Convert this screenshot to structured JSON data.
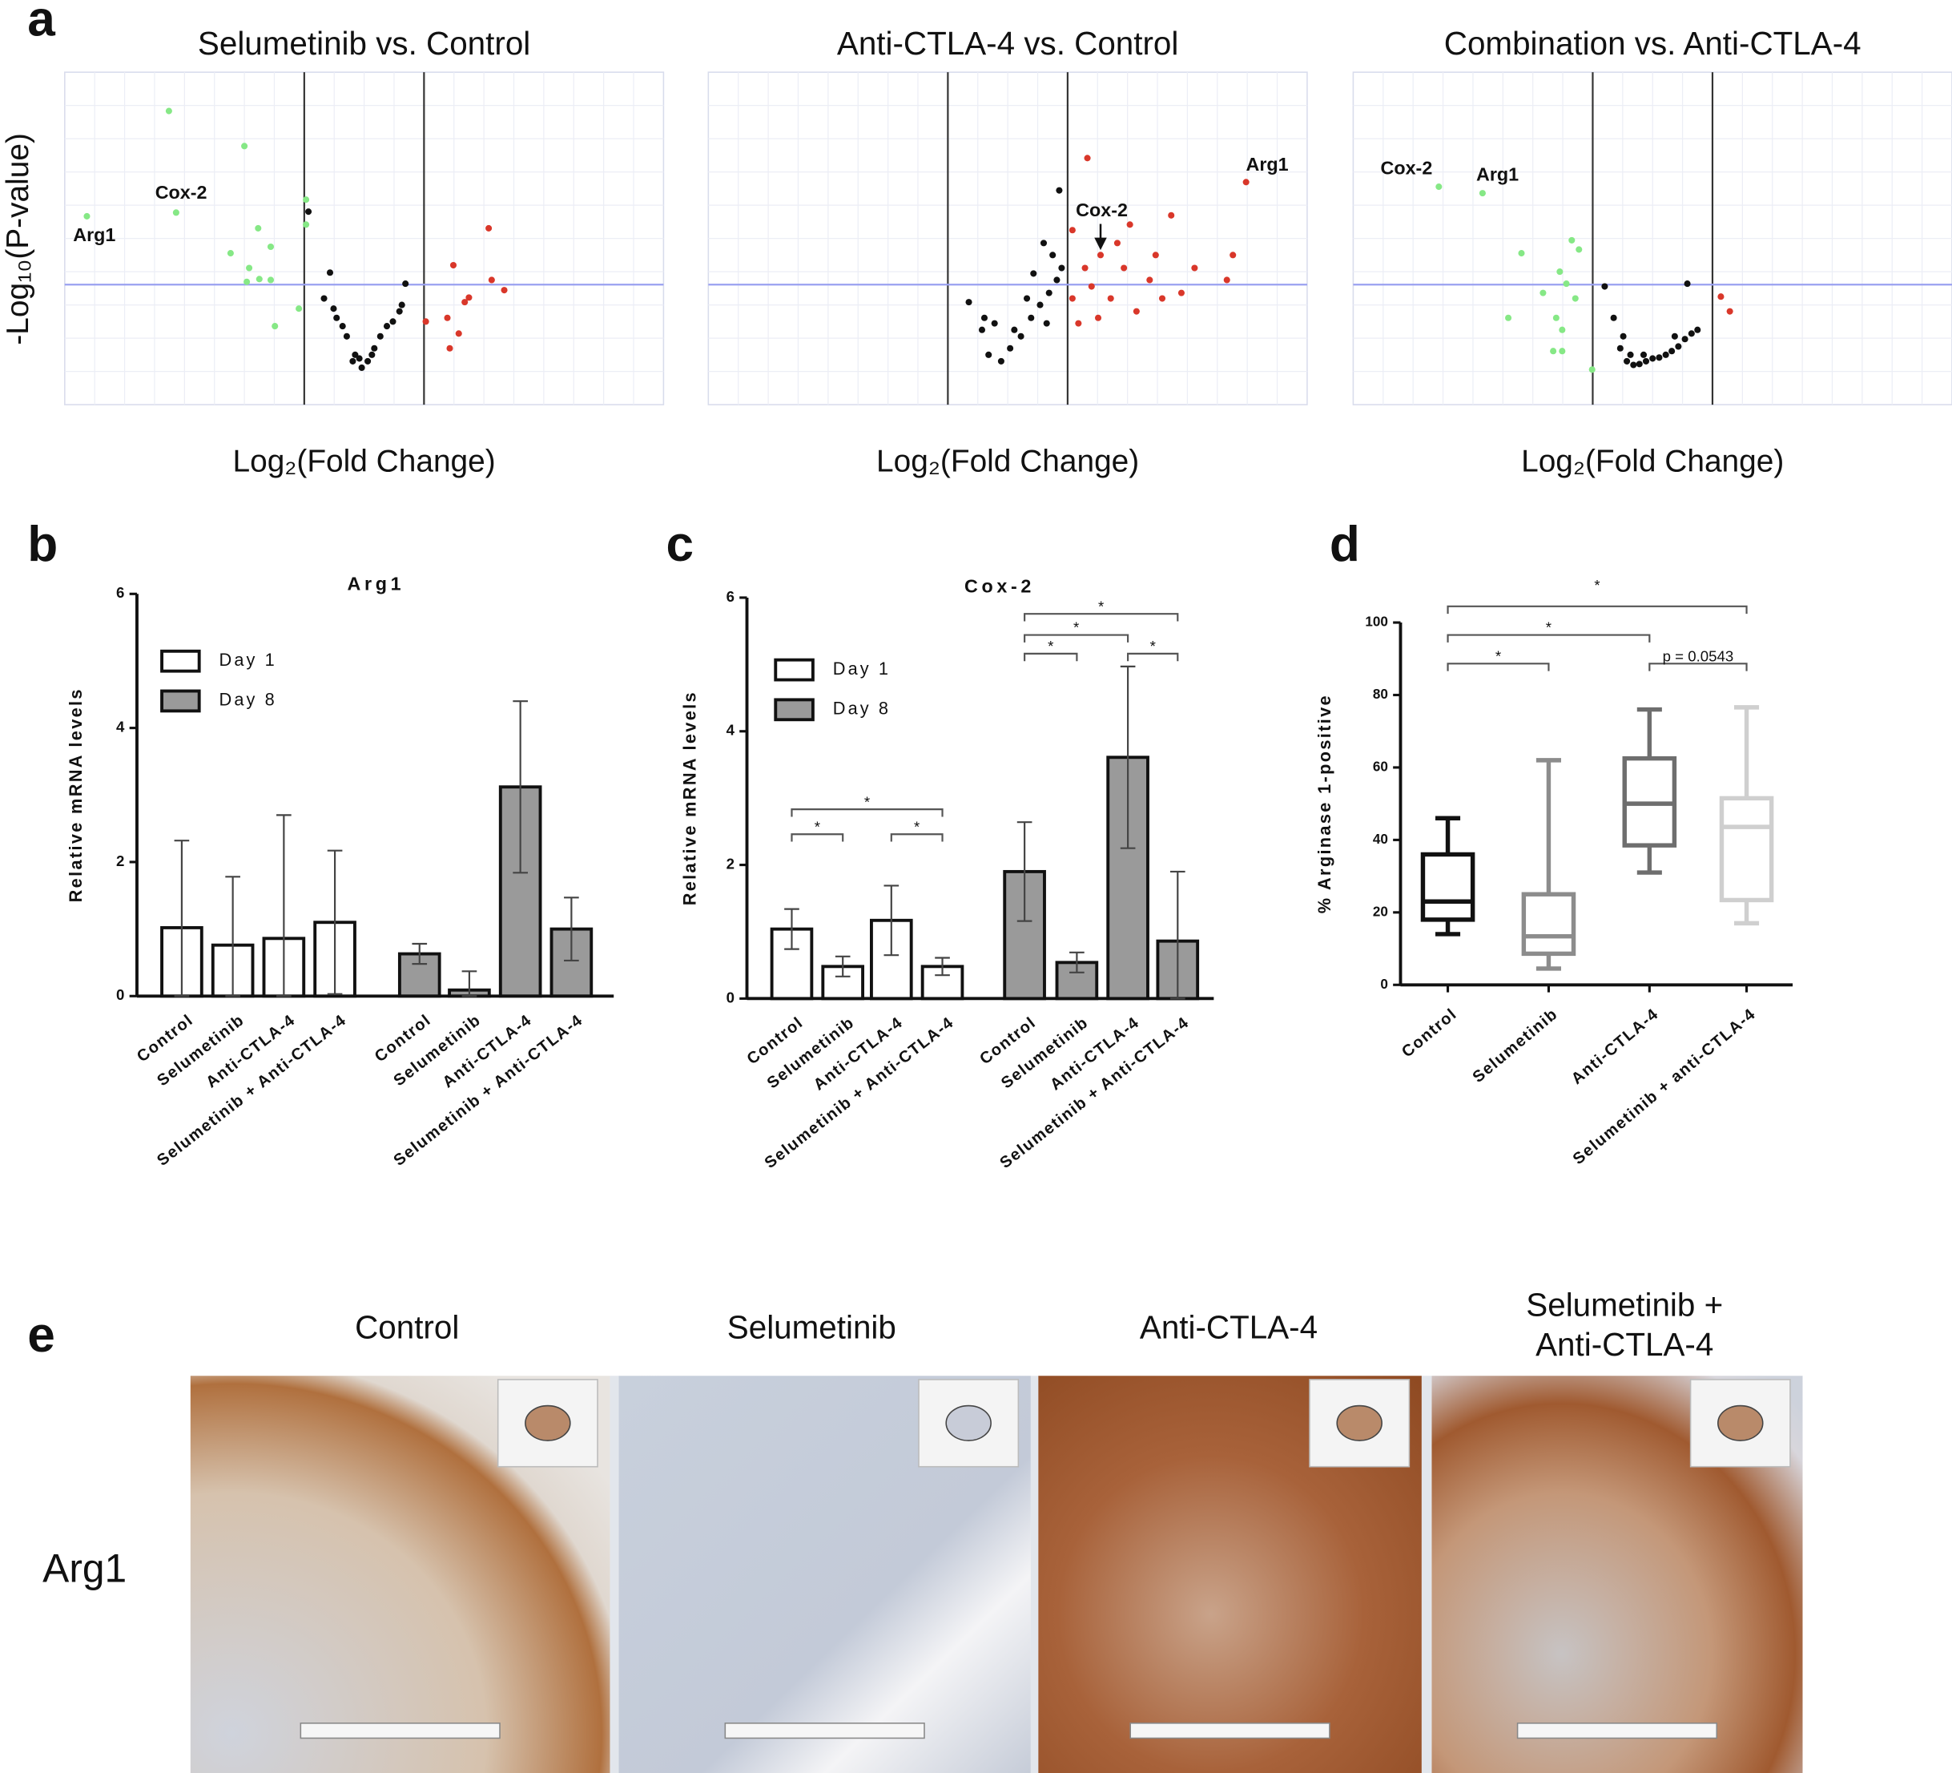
{
  "panels": [
    "a",
    "b",
    "c",
    "d",
    "e"
  ],
  "images": {
    "titles": [
      "Control",
      "Selumetinib",
      "Anti-CTLA-4",
      [
        "Selumetinib +",
        "Anti-CTLA-4"
      ]
    ],
    "row_label": "Arg1"
  },
  "chart_data": [
    {
      "type": "scatter",
      "title": "Selumetinib vs. Control",
      "xlabel": "Log₂(Fold Change)",
      "ylabel": "-Log₁₀(P-value)",
      "xlim": [
        -5,
        5
      ],
      "ylim": [
        0,
        3.6
      ],
      "grid": true,
      "vlines": [
        -1,
        1
      ],
      "hline": 1.3,
      "series": [
        {
          "color": "#86e886",
          "x": [
            -3.26,
            -2.0,
            -4.63,
            -3.14,
            -1.77,
            -1.56,
            -2.23,
            -1.92,
            -1.75,
            -1.96,
            -1.56,
            -0.97,
            -1.09,
            -1.49,
            -0.97
          ],
          "values": [
            3.18,
            2.8,
            2.04,
            2.08,
            1.91,
            1.71,
            1.64,
            1.48,
            1.36,
            1.33,
            1.35,
            2.22,
            1.04,
            0.85,
            1.95
          ]
        },
        {
          "color": "#111111",
          "x": [
            -0.93,
            -0.57,
            -0.67,
            -0.46,
            -0.29,
            -0.15,
            -0.04,
            0.06,
            0.17,
            0.27,
            0.38,
            0.48,
            0.59,
            0.69,
            0.63,
            -0.19,
            -0.08,
            -0.36,
            -0.51,
            0.13
          ],
          "values": [
            2.09,
            1.43,
            1.15,
            0.94,
            0.74,
            0.54,
            0.4,
            0.47,
            0.61,
            0.74,
            0.85,
            0.9,
            1.01,
            1.31,
            1.08,
            0.47,
            0.5,
            0.85,
            1.04,
            0.54
          ]
        },
        {
          "color": "#d9372a",
          "x": [
            1.49,
            2.08,
            2.13,
            2.34,
            1.68,
            1.39,
            1.58,
            1.03,
            1.75,
            1.43
          ],
          "values": [
            1.51,
            1.91,
            1.35,
            1.24,
            1.11,
            0.94,
            0.77,
            0.9,
            1.16,
            0.61
          ]
        }
      ],
      "annotations": [
        {
          "text": "Arg1",
          "series": 0,
          "index": 2
        },
        {
          "text": "Cox-2",
          "series": 0,
          "index": 3
        }
      ]
    },
    {
      "type": "scatter",
      "title": "Anti-CTLA-4 vs. Control",
      "xlabel": "Log₂(Fold Change)",
      "xlim": [
        -5,
        5
      ],
      "ylim": [
        0,
        3.6
      ],
      "grid": true,
      "vlines": [
        -1,
        1
      ],
      "hline": 1.3,
      "series": [
        {
          "color": "#111111",
          "x": [
            0.86,
            -0.65,
            -0.43,
            -0.32,
            -0.11,
            0.04,
            0.22,
            0.39,
            0.54,
            0.69,
            0.82,
            0.9,
            0.43,
            0.75,
            0.6,
            -0.22,
            0.11,
            -0.39,
            0.32,
            0.65
          ],
          "values": [
            2.32,
            1.11,
            0.81,
            0.54,
            0.47,
            0.61,
            0.74,
            0.94,
            1.08,
            1.21,
            1.35,
            1.48,
            1.42,
            1.62,
            1.75,
            0.88,
            0.81,
            0.94,
            1.15,
            0.88
          ]
        },
        {
          "color": "#d9372a",
          "x": [
            1.33,
            3.98,
            2.73,
            1.08,
            1.55,
            1.94,
            2.37,
            2.9,
            3.66,
            1.4,
            1.72,
            2.15,
            1.18,
            1.51,
            1.83,
            3.12,
            2.47,
            1.29,
            2.04,
            3.76,
            1.08,
            2.58
          ],
          "values": [
            2.67,
            2.41,
            2.05,
            1.89,
            1.62,
            1.48,
            1.35,
            1.21,
            1.35,
            1.28,
            1.15,
            1.01,
            0.88,
            0.94,
            1.75,
            1.48,
            1.62,
            1.48,
            1.95,
            1.62,
            1.15,
            1.15
          ]
        }
      ],
      "annotations": [
        {
          "text": "Arg1",
          "series": 1,
          "index": 1
        },
        {
          "text": "Cox-2",
          "series": 1,
          "index": 4
        }
      ]
    },
    {
      "type": "scatter",
      "title": "Combination vs. Anti-CTLA-4",
      "xlabel": "Log₂(Fold Change)",
      "xlim": [
        -5,
        5
      ],
      "ylim": [
        0,
        3.6
      ],
      "grid": true,
      "vlines": [
        -1,
        1
      ],
      "hline": 1.3,
      "series": [
        {
          "color": "#86e886",
          "x": [
            -3.57,
            -2.84,
            -2.19,
            -1.35,
            -1.23,
            -1.55,
            -1.44,
            -1.83,
            -2.41,
            -1.61,
            -1.51,
            -1.66,
            -1.51,
            -1.01,
            -1.29
          ],
          "values": [
            2.36,
            2.29,
            1.64,
            1.78,
            1.68,
            1.44,
            1.31,
            1.21,
            0.94,
            0.94,
            0.81,
            0.58,
            0.58,
            0.38,
            1.15
          ]
        },
        {
          "color": "#111111",
          "x": [
            -0.8,
            -0.65,
            -0.54,
            -0.43,
            -0.32,
            -0.22,
            -0.11,
            0,
            0.11,
            0.22,
            0.32,
            0.43,
            0.54,
            0.65,
            0.75,
            0.58,
            -0.15,
            -0.37,
            -0.49,
            0.37
          ],
          "values": [
            1.28,
            0.94,
            0.61,
            0.47,
            0.43,
            0.44,
            0.47,
            0.5,
            0.51,
            0.54,
            0.58,
            0.63,
            0.71,
            0.77,
            0.81,
            1.31,
            0.54,
            0.54,
            0.74,
            0.74
          ]
        },
        {
          "color": "#d9372a",
          "x": [
            1.14,
            1.29
          ],
          "values": [
            1.17,
            1.01
          ]
        }
      ],
      "annotations": [
        {
          "text": "Cox-2",
          "series": 0,
          "index": 0
        },
        {
          "text": "Arg1",
          "series": 0,
          "index": 1
        }
      ]
    },
    {
      "type": "bar",
      "title": "Arg1",
      "ylabel": "Relative mRNA levels",
      "ylim": [
        0,
        6
      ],
      "yticks": [
        0,
        2,
        4,
        6
      ],
      "legend": "upper left",
      "categories": [
        "Control",
        "Selumetinib",
        "Anti-CTLA-4",
        "Selumetinib + Anti-CTLA-4"
      ],
      "series": [
        {
          "name": "Day 1",
          "color": "#ffffff",
          "values": [
            1.02,
            0.76,
            0.86,
            1.1
          ],
          "errors": [
            1.3,
            1.02,
            1.84,
            1.07
          ]
        },
        {
          "name": "Day 8",
          "color": "#9a9a9a",
          "values": [
            0.63,
            0.09,
            3.12,
            1.0
          ],
          "errors": [
            0.15,
            0.28,
            1.28,
            0.47
          ]
        }
      ]
    },
    {
      "type": "bar",
      "title": "Cox-2",
      "ylabel": "Relative mRNA levels",
      "ylim": [
        0,
        6
      ],
      "yticks": [
        0,
        2,
        4,
        6
      ],
      "legend": "upper left",
      "categories": [
        "Control",
        "Selumetinib",
        "Anti-CTLA-4",
        "Selumetinib + Anti-CTLA-4"
      ],
      "series": [
        {
          "name": "Day 1",
          "color": "#ffffff",
          "values": [
            1.04,
            0.48,
            1.17,
            0.48
          ],
          "errors": [
            0.3,
            0.15,
            0.52,
            0.13
          ],
          "significance": [
            {
              "between": [
                0,
                1
              ],
              "label": "*"
            },
            {
              "between": [
                2,
                3
              ],
              "label": "*"
            },
            {
              "between": [
                0,
                3
              ],
              "label": "*"
            }
          ]
        },
        {
          "name": "Day 8",
          "color": "#9a9a9a",
          "values": [
            1.9,
            0.54,
            3.61,
            0.86
          ],
          "errors": [
            0.74,
            0.15,
            1.36,
            1.04
          ],
          "significance": [
            {
              "between": [
                0,
                1
              ],
              "label": "*"
            },
            {
              "between": [
                0,
                2
              ],
              "label": "*"
            },
            {
              "between": [
                2,
                3
              ],
              "label": "*"
            },
            {
              "between": [
                0,
                3
              ],
              "label": "*"
            }
          ]
        }
      ]
    },
    {
      "type": "box",
      "ylabel": "% Arginase 1-positive",
      "ylim": [
        0,
        100
      ],
      "yticks": [
        0,
        20,
        40,
        60,
        80,
        100
      ],
      "categories": [
        "Control",
        "Selumetinib",
        "Anti-CTLA-4",
        "Selumetinib + anti-CTLA-4"
      ],
      "colors": [
        "#111111",
        "#8c8c8c",
        "#6e6e6e",
        "#cfcfcf"
      ],
      "whislo": [
        14,
        4.5,
        31,
        17
      ],
      "q1": [
        18,
        8.6,
        38.5,
        23.4
      ],
      "med": [
        23,
        13.4,
        50,
        43.6
      ],
      "q3": [
        36,
        25,
        62.5,
        51.5
      ],
      "whishi": [
        46,
        62,
        76,
        76.6
      ],
      "significance": [
        {
          "between": [
            0,
            1
          ],
          "label": "*"
        },
        {
          "between": [
            0,
            2
          ],
          "label": "*"
        },
        {
          "between": [
            0,
            3
          ],
          "label": "*"
        },
        {
          "between": [
            2,
            3
          ],
          "label": "p = 0.0543"
        }
      ]
    }
  ]
}
